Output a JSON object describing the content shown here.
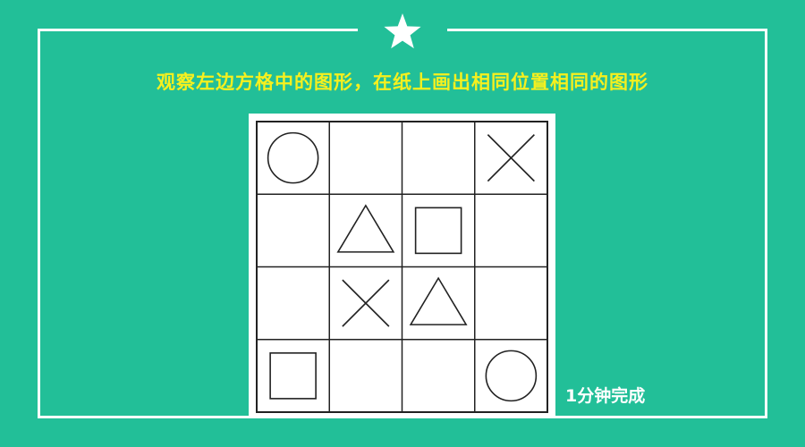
{
  "instruction": "观察左边方格中的图形，在纸上画出相同位置相同的图形",
  "time_label": "1分钟完成",
  "colors": {
    "background": "#22bf98",
    "frame": "#ffffff",
    "instruction_text": "#f6f01e",
    "grid_line": "#222222"
  },
  "grid": {
    "rows": 4,
    "cols": 4,
    "shapes": [
      {
        "row": 0,
        "col": 0,
        "shape": "circle"
      },
      {
        "row": 0,
        "col": 3,
        "shape": "cross"
      },
      {
        "row": 1,
        "col": 1,
        "shape": "triangle"
      },
      {
        "row": 1,
        "col": 2,
        "shape": "square"
      },
      {
        "row": 2,
        "col": 1,
        "shape": "cross"
      },
      {
        "row": 2,
        "col": 2,
        "shape": "triangle"
      },
      {
        "row": 3,
        "col": 0,
        "shape": "square"
      },
      {
        "row": 3,
        "col": 3,
        "shape": "circle"
      }
    ]
  }
}
